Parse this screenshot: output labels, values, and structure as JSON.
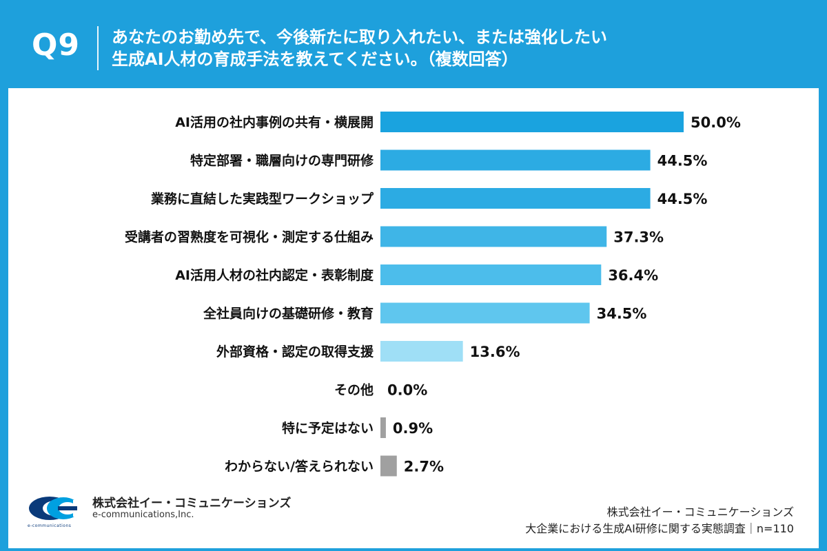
{
  "header": {
    "q_label": "Q9",
    "title_line1": "あなたのお勤め先で、今後新たに取り入れたい、または強化したい",
    "title_line2": "生成AI人材の育成手法を教えてください。（複数回答）"
  },
  "chart_data": {
    "type": "bar",
    "orientation": "horizontal",
    "categories": [
      "AI活用の社内事例の共有・横展開",
      "特定部署・職層向けの専門研修",
      "業務に直結した実践型ワークショップ",
      "受講者の習熟度を可視化・測定する仕組み",
      "AI活用人材の社内認定・表彰制度",
      "全社員向けの基礎研修・教育",
      "外部資格・認定の取得支援",
      "その他",
      "特に予定はない",
      "わからない/答えられない"
    ],
    "values": [
      50.0,
      44.5,
      44.5,
      37.3,
      36.4,
      34.5,
      13.6,
      0.0,
      0.9,
      2.7
    ],
    "value_labels": [
      "50.0%",
      "44.5%",
      "44.5%",
      "37.3%",
      "36.4%",
      "34.5%",
      "13.6%",
      "0.0%",
      "0.9%",
      "2.7%"
    ],
    "colors": [
      "#1aa3df",
      "#2cabe3",
      "#2cabe3",
      "#3fb5e7",
      "#4cbdeb",
      "#5fc6ee",
      "#9fdff6",
      "#9fdff6",
      "#a0a0a0",
      "#a0a0a0"
    ],
    "xlim": [
      0,
      50
    ],
    "grid": false,
    "legend": "none"
  },
  "footer": {
    "logo_name": "株式会社イー・コミュニケーションズ",
    "logo_sub": "e-communications,Inc.",
    "logo_tiny": "e-communications",
    "source_line1": "株式会社イー・コミュニケーションズ",
    "source_line2": "大企業における生成AI研修に関する実態調査｜n=110"
  },
  "colors": {
    "background": "#1ea0dc",
    "panel": "#ffffff",
    "logo_blue": "#0a3a7a",
    "logo_cyan": "#00a0e0"
  }
}
